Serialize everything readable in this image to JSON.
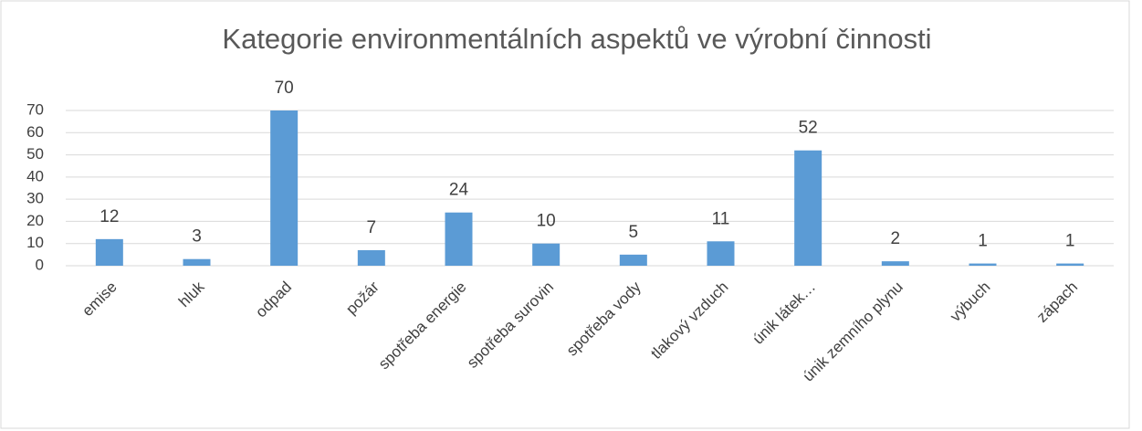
{
  "chart_data": {
    "type": "bar",
    "title": "Kategorie environmentálních aspektů ve výrobní činnosti",
    "categories": [
      "emise",
      "hluk",
      "odpad",
      "požár",
      "spotřeba energie",
      "spotřeba surovin",
      "spotřeba vody",
      "tlakový vzduch",
      "únik látek…",
      "únik zemního plynu",
      "výbuch",
      "zápach"
    ],
    "values": [
      12,
      3,
      70,
      7,
      24,
      10,
      5,
      11,
      52,
      2,
      1,
      1
    ],
    "color": "#5b9bd5",
    "ylim": [
      0,
      70
    ],
    "yticks": [
      0,
      10,
      20,
      30,
      40,
      50,
      60,
      70
    ],
    "grid": true,
    "data_labels": true
  }
}
